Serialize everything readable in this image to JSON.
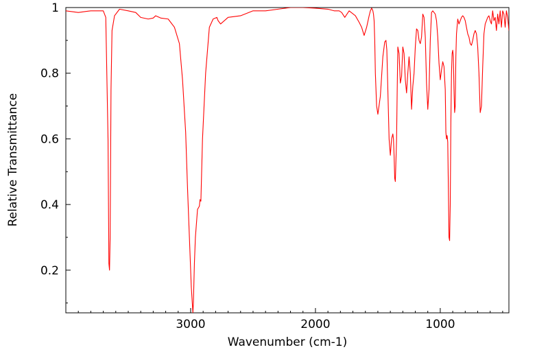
{
  "chart_data": {
    "type": "line",
    "title": "",
    "xlabel": "Wavenumber (cm-1)",
    "ylabel": "Relative Transmittance",
    "xlim": [
      4000,
      450
    ],
    "ylim": [
      0.07,
      1.0
    ],
    "x_ticks": [
      {
        "value": 3000,
        "label": "3000"
      },
      {
        "value": 2000,
        "label": "2000"
      },
      {
        "value": 1000,
        "label": "1000"
      }
    ],
    "y_ticks": [
      {
        "value": 0.2,
        "label": "0.2"
      },
      {
        "value": 0.4,
        "label": "0.4"
      },
      {
        "value": 0.6,
        "label": "0.6"
      },
      {
        "value": 0.8,
        "label": "0.8"
      },
      {
        "value": 1.0,
        "label": "1"
      }
    ],
    "grid": false,
    "series": [
      {
        "color": "#ff0000",
        "x": [
          4000,
          3900,
          3800,
          3700,
          3680,
          3662,
          3655,
          3650,
          3645,
          3638,
          3630,
          3610,
          3570,
          3500,
          3440,
          3400,
          3340,
          3300,
          3280,
          3240,
          3180,
          3130,
          3090,
          3065,
          3040,
          3025,
          3010,
          2995,
          2982,
          2978,
          2970,
          2962,
          2950,
          2945,
          2930,
          2925,
          2918,
          2905,
          2880,
          2850,
          2820,
          2790,
          2780,
          2760,
          2700,
          2600,
          2500,
          2400,
          2300,
          2200,
          2100,
          2000,
          1900,
          1850,
          1810,
          1790,
          1765,
          1730,
          1680,
          1650,
          1630,
          1610,
          1590,
          1570,
          1560,
          1550,
          1545,
          1540,
          1535,
          1530,
          1525,
          1520,
          1510,
          1500,
          1480,
          1460,
          1445,
          1435,
          1428,
          1420,
          1410,
          1400,
          1390,
          1380,
          1375,
          1370,
          1365,
          1360,
          1350,
          1345,
          1340,
          1330,
          1320,
          1310,
          1300,
          1290,
          1280,
          1270,
          1260,
          1250,
          1240,
          1230,
          1220,
          1210,
          1200,
          1190,
          1180,
          1170,
          1160,
          1150,
          1140,
          1130,
          1120,
          1110,
          1100,
          1090,
          1080,
          1070,
          1060,
          1050,
          1040,
          1030,
          1020,
          1010,
          1000,
          990,
          980,
          970,
          960,
          955,
          950,
          945,
          940,
          935,
          930,
          925,
          920,
          915,
          910,
          905,
          900,
          895,
          890,
          885,
          880,
          875,
          870,
          860,
          850,
          840,
          830,
          820,
          810,
          800,
          790,
          780,
          770,
          760,
          750,
          740,
          730,
          720,
          710,
          700,
          690,
          680,
          670,
          660,
          650,
          640,
          630,
          620,
          610,
          600,
          590,
          580,
          570,
          560,
          550,
          540,
          530,
          520,
          510,
          500,
          490,
          480,
          470,
          460,
          450
        ],
        "y": [
          0.99,
          0.985,
          0.99,
          0.99,
          0.97,
          0.6,
          0.22,
          0.2,
          0.3,
          0.75,
          0.93,
          0.975,
          0.995,
          0.99,
          0.985,
          0.97,
          0.965,
          0.968,
          0.975,
          0.968,
          0.965,
          0.94,
          0.89,
          0.78,
          0.62,
          0.45,
          0.3,
          0.15,
          0.07,
          0.1,
          0.22,
          0.3,
          0.36,
          0.385,
          0.395,
          0.415,
          0.41,
          0.6,
          0.8,
          0.94,
          0.965,
          0.97,
          0.96,
          0.95,
          0.97,
          0.975,
          0.99,
          0.99,
          0.995,
          1.0,
          1.0,
          0.998,
          0.995,
          0.99,
          0.99,
          0.985,
          0.97,
          0.99,
          0.975,
          0.955,
          0.94,
          0.915,
          0.94,
          0.975,
          0.99,
          0.998,
          0.995,
          0.99,
          0.98,
          0.96,
          0.9,
          0.8,
          0.7,
          0.675,
          0.73,
          0.85,
          0.895,
          0.9,
          0.87,
          0.75,
          0.6,
          0.55,
          0.6,
          0.615,
          0.6,
          0.55,
          0.48,
          0.47,
          0.6,
          0.75,
          0.88,
          0.86,
          0.77,
          0.79,
          0.88,
          0.86,
          0.78,
          0.74,
          0.8,
          0.85,
          0.8,
          0.69,
          0.76,
          0.8,
          0.88,
          0.935,
          0.93,
          0.9,
          0.89,
          0.91,
          0.98,
          0.97,
          0.91,
          0.77,
          0.69,
          0.75,
          0.9,
          0.985,
          0.99,
          0.985,
          0.98,
          0.96,
          0.91,
          0.83,
          0.78,
          0.81,
          0.835,
          0.82,
          0.75,
          0.62,
          0.6,
          0.61,
          0.59,
          0.45,
          0.3,
          0.29,
          0.4,
          0.65,
          0.8,
          0.86,
          0.87,
          0.85,
          0.75,
          0.68,
          0.7,
          0.85,
          0.92,
          0.965,
          0.95,
          0.96,
          0.97,
          0.975,
          0.97,
          0.96,
          0.94,
          0.92,
          0.91,
          0.89,
          0.885,
          0.9,
          0.92,
          0.93,
          0.92,
          0.88,
          0.8,
          0.68,
          0.7,
          0.82,
          0.92,
          0.95,
          0.96,
          0.97,
          0.975,
          0.96,
          0.95,
          0.99,
          0.96,
          0.97,
          0.93,
          0.98,
          0.95,
          0.99,
          0.94,
          0.99,
          0.98,
          0.94,
          0.99,
          0.97,
          0.93
        ]
      }
    ]
  }
}
